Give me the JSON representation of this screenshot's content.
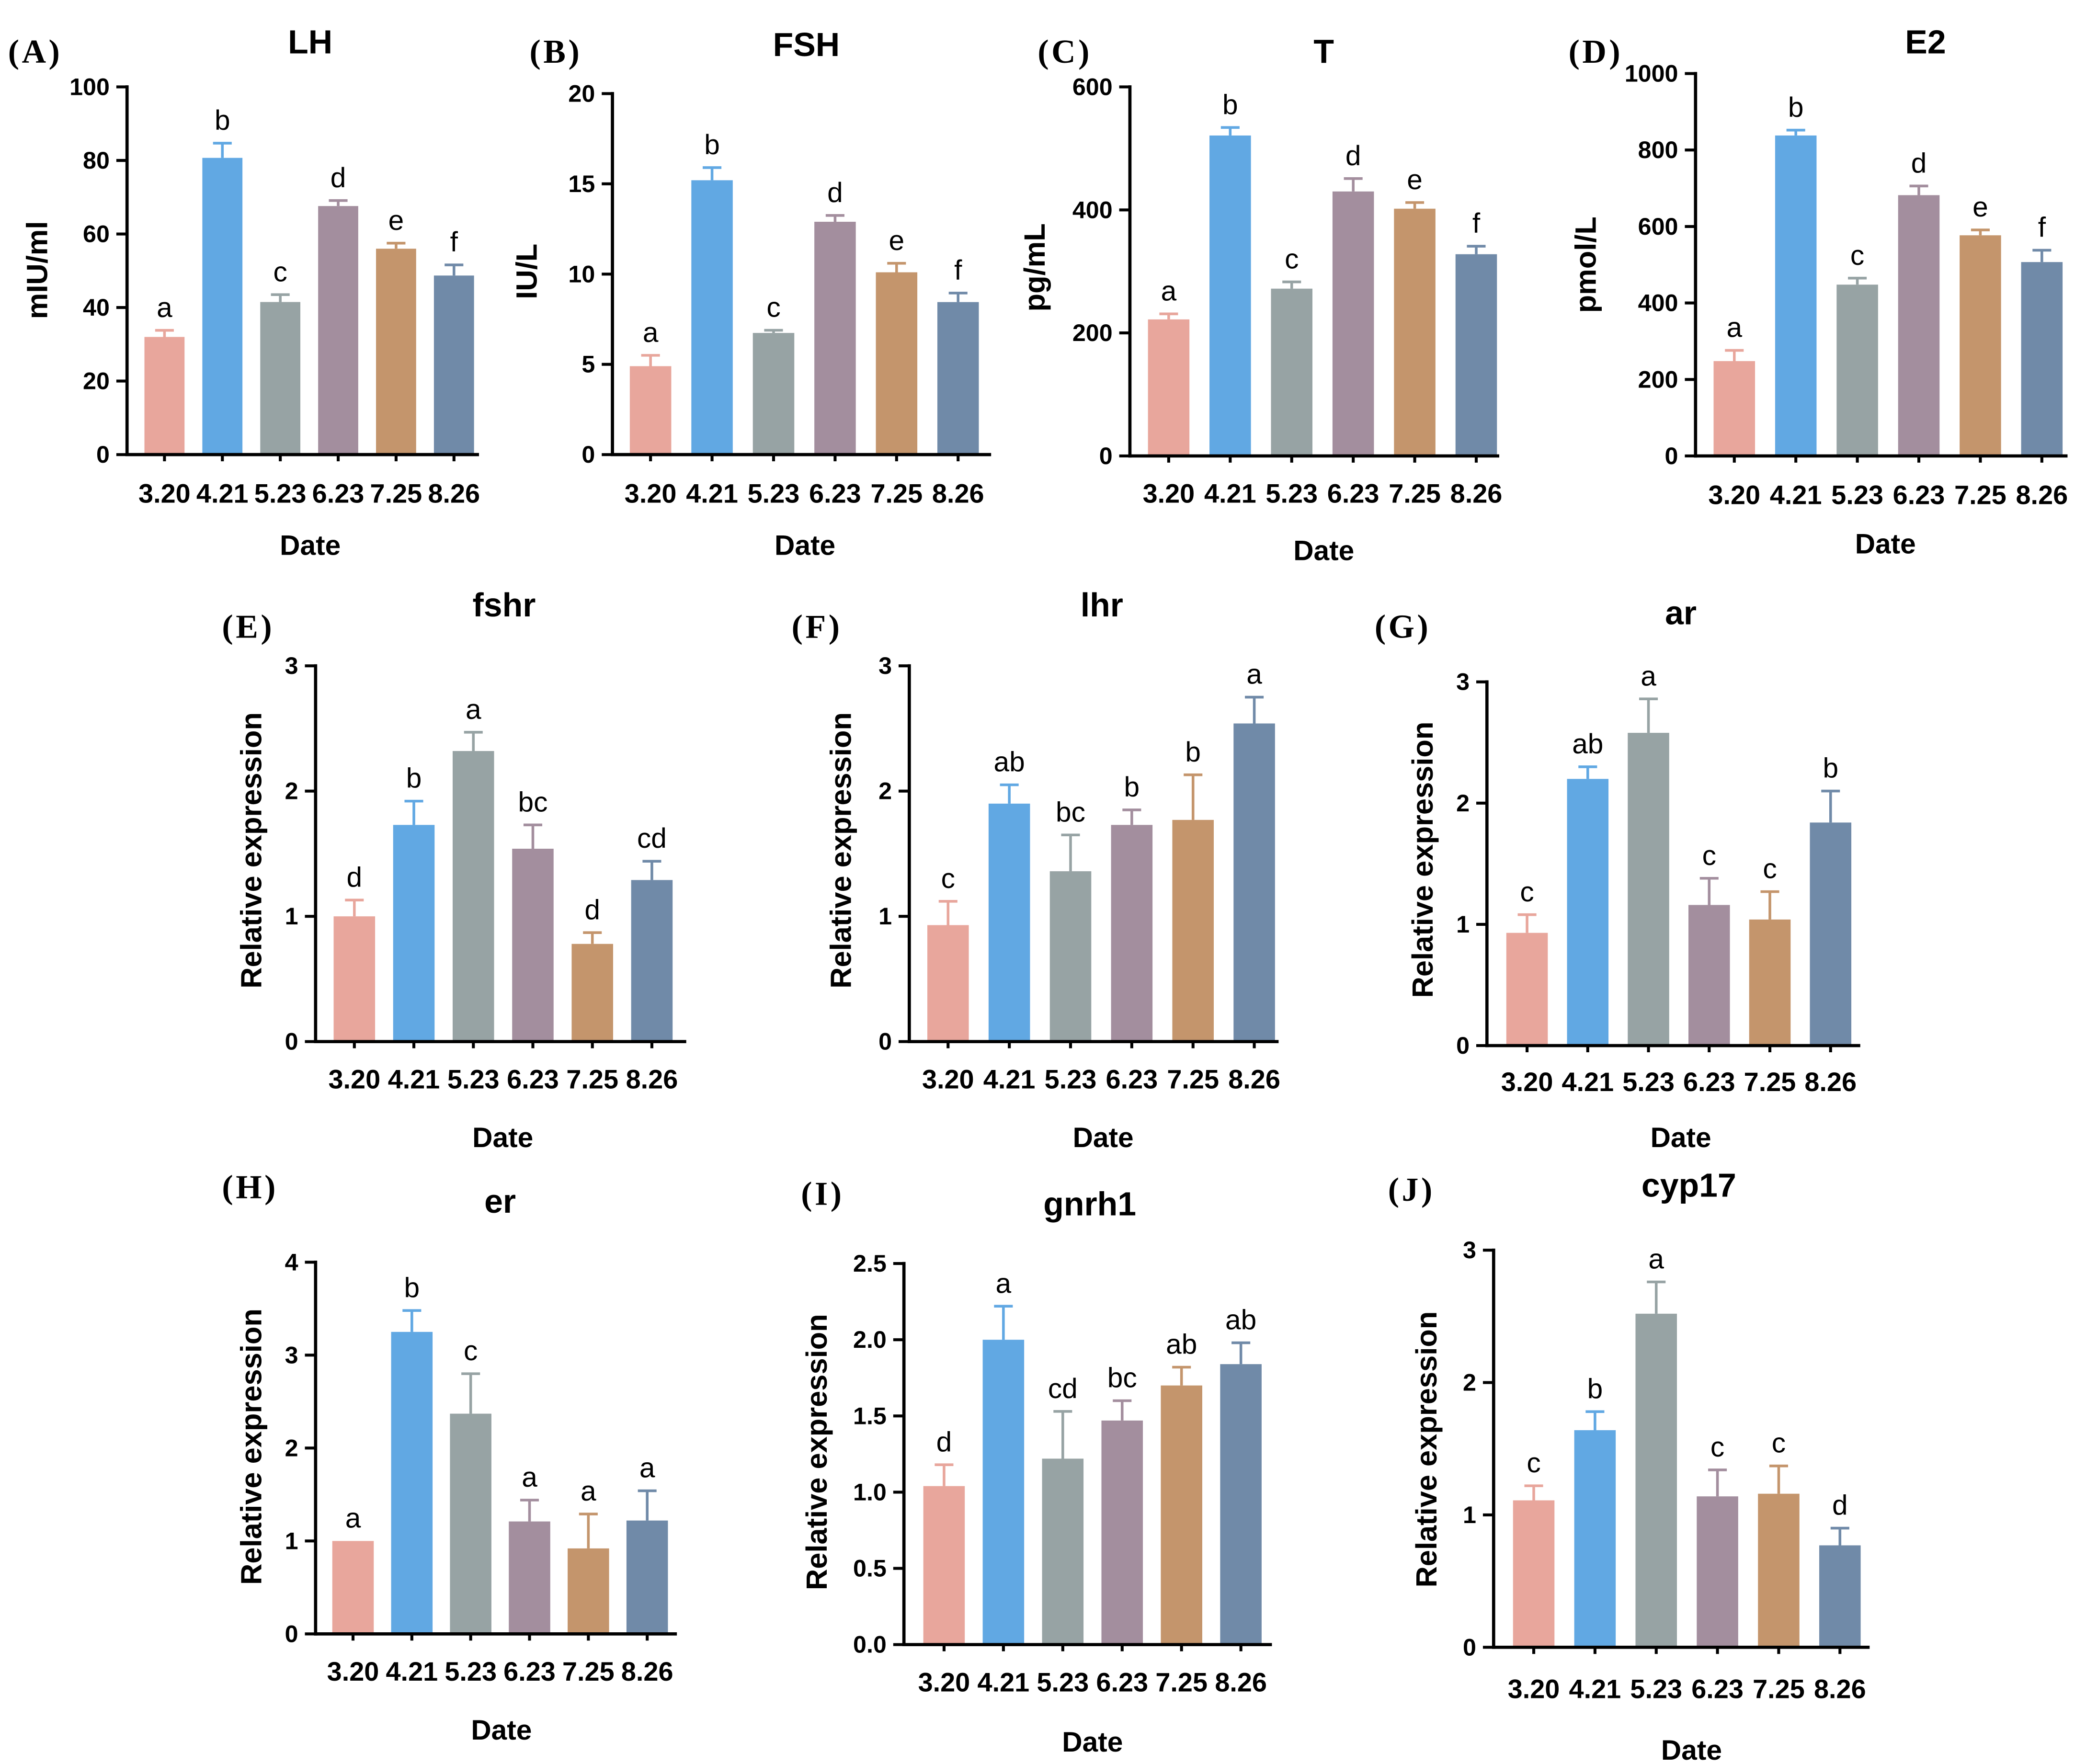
{
  "colors": [
    "#E8A69C",
    "#61A8E3",
    "#97A3A4",
    "#A38E9E",
    "#C4956C",
    "#708AA8"
  ],
  "chart_data": [
    {
      "type": "bar",
      "panel": "(A)",
      "title": "LH",
      "xlabel": "Date",
      "ylabel": "mIU/ml",
      "ylim": [
        0,
        100
      ],
      "yticks": [
        "0",
        "20",
        "40",
        "60",
        "80",
        "100"
      ],
      "categories": [
        "3.20",
        "4.21",
        "5.23",
        "6.23",
        "7.25",
        "8.26"
      ],
      "values": [
        32,
        80.7,
        41.5,
        67.6,
        56,
        48.7
      ],
      "errors": [
        1.8,
        4,
        2,
        1.5,
        1.5,
        2.9
      ],
      "labels": [
        "a",
        "b",
        "c",
        "d",
        "e",
        "f"
      ]
    },
    {
      "type": "bar",
      "panel": "(B)",
      "title": "FSH",
      "xlabel": "Date",
      "ylabel": "IU/L",
      "ylim": [
        0,
        20
      ],
      "yticks": [
        "0",
        "5",
        "10",
        "15",
        "20"
      ],
      "categories": [
        "3.20",
        "4.21",
        "5.23",
        "6.23",
        "7.25",
        "8.26"
      ],
      "values": [
        4.9,
        15.2,
        6.74,
        12.9,
        10.1,
        8.45
      ],
      "errors": [
        0.6,
        0.7,
        0.15,
        0.35,
        0.5,
        0.5
      ],
      "labels": [
        "a",
        "b",
        "c",
        "d",
        "e",
        "f"
      ]
    },
    {
      "type": "bar",
      "panel": "(C)",
      "title": "T",
      "xlabel": "Date",
      "ylabel": "pg/mL",
      "ylim": [
        0,
        600
      ],
      "yticks": [
        "0",
        "200",
        "400",
        "600"
      ],
      "categories": [
        "3.20",
        "4.21",
        "5.23",
        "6.23",
        "7.25",
        "8.26"
      ],
      "values": [
        222,
        521,
        272,
        430,
        402,
        328
      ],
      "errors": [
        9,
        13,
        11,
        21,
        10,
        13
      ],
      "labels": [
        "a",
        "b",
        "c",
        "d",
        "e",
        "f"
      ]
    },
    {
      "type": "bar",
      "panel": "(D)",
      "title": "E2",
      "xlabel": "Date",
      "ylabel": "pmol/L",
      "ylim": [
        0,
        1000
      ],
      "yticks": [
        "0",
        "200",
        "400",
        "600",
        "800",
        "1000"
      ],
      "categories": [
        "3.20",
        "4.21",
        "5.23",
        "6.23",
        "7.25",
        "8.26"
      ],
      "values": [
        248,
        838,
        448,
        682,
        577,
        507
      ],
      "errors": [
        28,
        14,
        17,
        24,
        14,
        31
      ],
      "labels": [
        "a",
        "b",
        "c",
        "d",
        "e",
        "f"
      ]
    },
    {
      "type": "bar",
      "panel": "(E)",
      "title": "fshr",
      "xlabel": "Date",
      "ylabel": "Relative expression",
      "ylim": [
        0,
        3
      ],
      "yticks": [
        "0",
        "1",
        "2",
        "3"
      ],
      "categories": [
        "3.20",
        "4.21",
        "5.23",
        "6.23",
        "7.25",
        "8.26"
      ],
      "values": [
        1.0,
        1.73,
        2.32,
        1.54,
        0.78,
        1.29
      ],
      "errors": [
        0.13,
        0.19,
        0.15,
        0.19,
        0.09,
        0.15
      ],
      "labels": [
        "d",
        "b",
        "a",
        "bc",
        "d",
        "cd"
      ]
    },
    {
      "type": "bar",
      "panel": "(F)",
      "title": "lhr",
      "xlabel": "Date",
      "ylabel": "Relative expression",
      "ylim": [
        0,
        3
      ],
      "yticks": [
        "0",
        "1",
        "2",
        "3"
      ],
      "categories": [
        "3.20",
        "4.21",
        "5.23",
        "6.23",
        "7.25",
        "8.26"
      ],
      "values": [
        0.93,
        1.9,
        1.36,
        1.73,
        1.77,
        2.54
      ],
      "errors": [
        0.19,
        0.15,
        0.29,
        0.12,
        0.36,
        0.21
      ],
      "labels": [
        "c",
        "ab",
        "bc",
        "b",
        "b",
        "a"
      ]
    },
    {
      "type": "bar",
      "panel": "(G)",
      "title": "ar",
      "xlabel": "Date",
      "ylabel": "Relative expression",
      "ylim": [
        0,
        3
      ],
      "yticks": [
        "0",
        "1",
        "2",
        "3"
      ],
      "categories": [
        "3.20",
        "4.21",
        "5.23",
        "6.23",
        "7.25",
        "8.26"
      ],
      "values": [
        0.93,
        2.2,
        2.58,
        1.16,
        1.04,
        1.84
      ],
      "errors": [
        0.15,
        0.1,
        0.28,
        0.22,
        0.23,
        0.26
      ],
      "labels": [
        "c",
        "ab",
        "a",
        "c",
        "c",
        "b"
      ]
    },
    {
      "type": "bar",
      "panel": "(H)",
      "title": "er",
      "xlabel": "Date",
      "ylabel": "Relative expression",
      "ylim": [
        0,
        4
      ],
      "yticks": [
        "0",
        "1",
        "2",
        "3",
        "4"
      ],
      "categories": [
        "3.20",
        "4.21",
        "5.23",
        "6.23",
        "7.25",
        "8.26"
      ],
      "values": [
        1.0,
        3.25,
        2.37,
        1.21,
        0.92,
        1.22
      ],
      "errors": [
        0,
        0.23,
        0.43,
        0.23,
        0.37,
        0.32
      ],
      "labels": [
        "a",
        "b",
        "c",
        "a",
        "a",
        "a"
      ]
    },
    {
      "type": "bar",
      "panel": "(I)",
      "title": "gnrh1",
      "xlabel": "Date",
      "ylabel": "Relative expression",
      "ylim": [
        0,
        2.5
      ],
      "yticks": [
        "0.0",
        "0.5",
        "1.0",
        "1.5",
        "2.0",
        "2.5"
      ],
      "categories": [
        "3.20",
        "4.21",
        "5.23",
        "6.23",
        "7.25",
        "8.26"
      ],
      "values": [
        1.04,
        2.0,
        1.22,
        1.47,
        1.7,
        1.84
      ],
      "errors": [
        0.14,
        0.22,
        0.31,
        0.13,
        0.12,
        0.14
      ],
      "labels": [
        "d",
        "a",
        "cd",
        "bc",
        "ab",
        "ab"
      ]
    },
    {
      "type": "bar",
      "panel": "(J)",
      "title": "cyp17",
      "xlabel": "Date",
      "ylabel": "Relative expression",
      "ylim": [
        0,
        3
      ],
      "yticks": [
        "0",
        "1",
        "2",
        "3"
      ],
      "categories": [
        "3.20",
        "4.21",
        "5.23",
        "6.23",
        "7.25",
        "8.26"
      ],
      "values": [
        1.11,
        1.64,
        2.52,
        1.14,
        1.16,
        0.77
      ],
      "errors": [
        0.11,
        0.14,
        0.24,
        0.2,
        0.21,
        0.13
      ],
      "labels": [
        "c",
        "b",
        "a",
        "c",
        "c",
        "d"
      ]
    }
  ]
}
